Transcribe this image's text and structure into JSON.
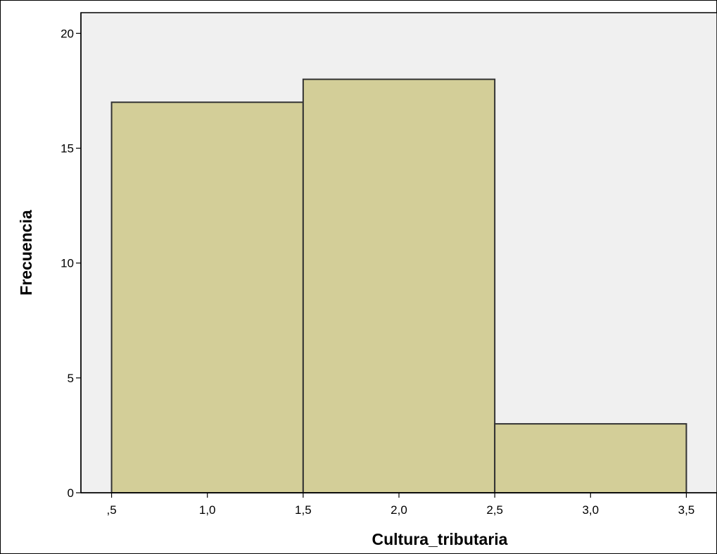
{
  "colors": {
    "page_background": "#ffffff",
    "plot_background": "#f0f0f0",
    "bar_fill": "#d3ce98",
    "bar_stroke": "#333333",
    "axis": "#000000"
  },
  "chart_data": {
    "type": "histogram",
    "title": "",
    "xlabel": "Cultura_tributaria",
    "ylabel": "Frecuencia",
    "bins": [
      {
        "start": 0.5,
        "end": 1.5,
        "value": 17
      },
      {
        "start": 1.5,
        "end": 2.5,
        "value": 18
      },
      {
        "start": 2.5,
        "end": 3.5,
        "value": 3
      }
    ],
    "xlim": [
      0.34,
      3.66
    ],
    "ylim": [
      0,
      20.9
    ],
    "x_ticks": [
      {
        "value": 0.5,
        "label": ",5"
      },
      {
        "value": 1.0,
        "label": "1,0"
      },
      {
        "value": 1.5,
        "label": "1,5"
      },
      {
        "value": 2.0,
        "label": "2,0"
      },
      {
        "value": 2.5,
        "label": "2,5"
      },
      {
        "value": 3.0,
        "label": "3,0"
      },
      {
        "value": 3.5,
        "label": "3,5"
      }
    ],
    "y_ticks": [
      {
        "value": 0,
        "label": "0"
      },
      {
        "value": 5,
        "label": "5"
      },
      {
        "value": 10,
        "label": "10"
      },
      {
        "value": 15,
        "label": "15"
      },
      {
        "value": 20,
        "label": "20"
      }
    ],
    "grid": false,
    "legend": "none"
  }
}
